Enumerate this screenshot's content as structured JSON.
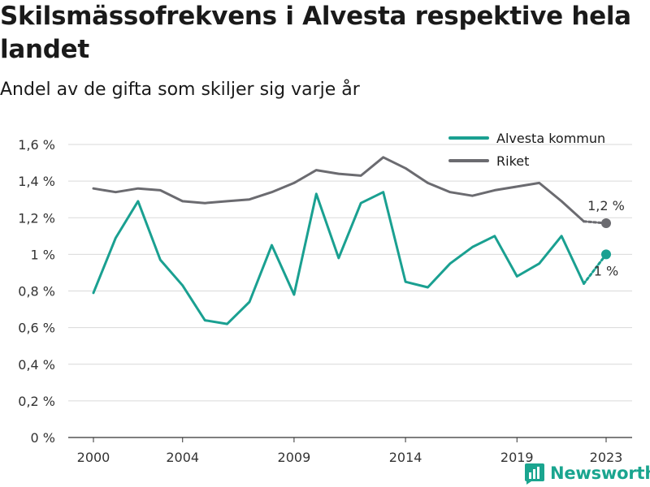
{
  "header": {
    "title": "Skilsmässofrekvens i Alvesta respektive hela landet",
    "subtitle": "Andel av de gifta som skiljer sig varje år"
  },
  "legend": [
    {
      "label": "Alvesta kommun",
      "color": "#1aa091"
    },
    {
      "label": "Riket",
      "color": "#6b6b70"
    }
  ],
  "brand": {
    "name": "Newsworthy",
    "icon": "bar-chart-logo-icon",
    "color": "#1aa58f"
  },
  "chart_data": {
    "type": "line",
    "title": "Skilsmässofrekvens i Alvesta respektive hela landet",
    "subtitle": "Andel av de gifta som skiljer sig varje år",
    "xlabel": "",
    "ylabel": "",
    "x": [
      2000,
      2001,
      2002,
      2003,
      2004,
      2005,
      2006,
      2007,
      2008,
      2009,
      2010,
      2011,
      2012,
      2013,
      2014,
      2015,
      2016,
      2017,
      2018,
      2019,
      2020,
      2021,
      2022,
      2023
    ],
    "xticks": [
      2000,
      2004,
      2009,
      2014,
      2019,
      2023
    ],
    "xtick_labels": [
      "2000",
      "2004",
      "2009",
      "2014",
      "2019",
      "2023"
    ],
    "ylim": [
      0,
      1.6
    ],
    "yticks": [
      0,
      0.2,
      0.4,
      0.6,
      0.8,
      1.0,
      1.2,
      1.4,
      1.6
    ],
    "ytick_labels": [
      "0 %",
      "0,2 %",
      "0,4 %",
      "0,6 %",
      "0,8 %",
      "1 %",
      "1,2 %",
      "1,4 %",
      "1,6 %"
    ],
    "grid": "horizontal",
    "legend_position": "top-right",
    "series": [
      {
        "name": "Alvesta kommun",
        "color": "#1aa091",
        "values": [
          0.79,
          1.09,
          1.29,
          0.97,
          0.83,
          0.64,
          0.62,
          0.74,
          1.05,
          0.78,
          1.33,
          0.98,
          1.28,
          1.34,
          0.85,
          0.82,
          0.95,
          1.04,
          1.1,
          0.88,
          0.95,
          1.1,
          0.84,
          1.0
        ],
        "end_label": "1 %"
      },
      {
        "name": "Riket",
        "color": "#6b6b70",
        "values": [
          1.36,
          1.34,
          1.36,
          1.35,
          1.29,
          1.28,
          1.29,
          1.3,
          1.34,
          1.39,
          1.46,
          1.44,
          1.43,
          1.53,
          1.47,
          1.39,
          1.34,
          1.32,
          1.35,
          1.37,
          1.39,
          1.29,
          1.18,
          1.17
        ],
        "end_label": "1,2 %"
      }
    ]
  }
}
